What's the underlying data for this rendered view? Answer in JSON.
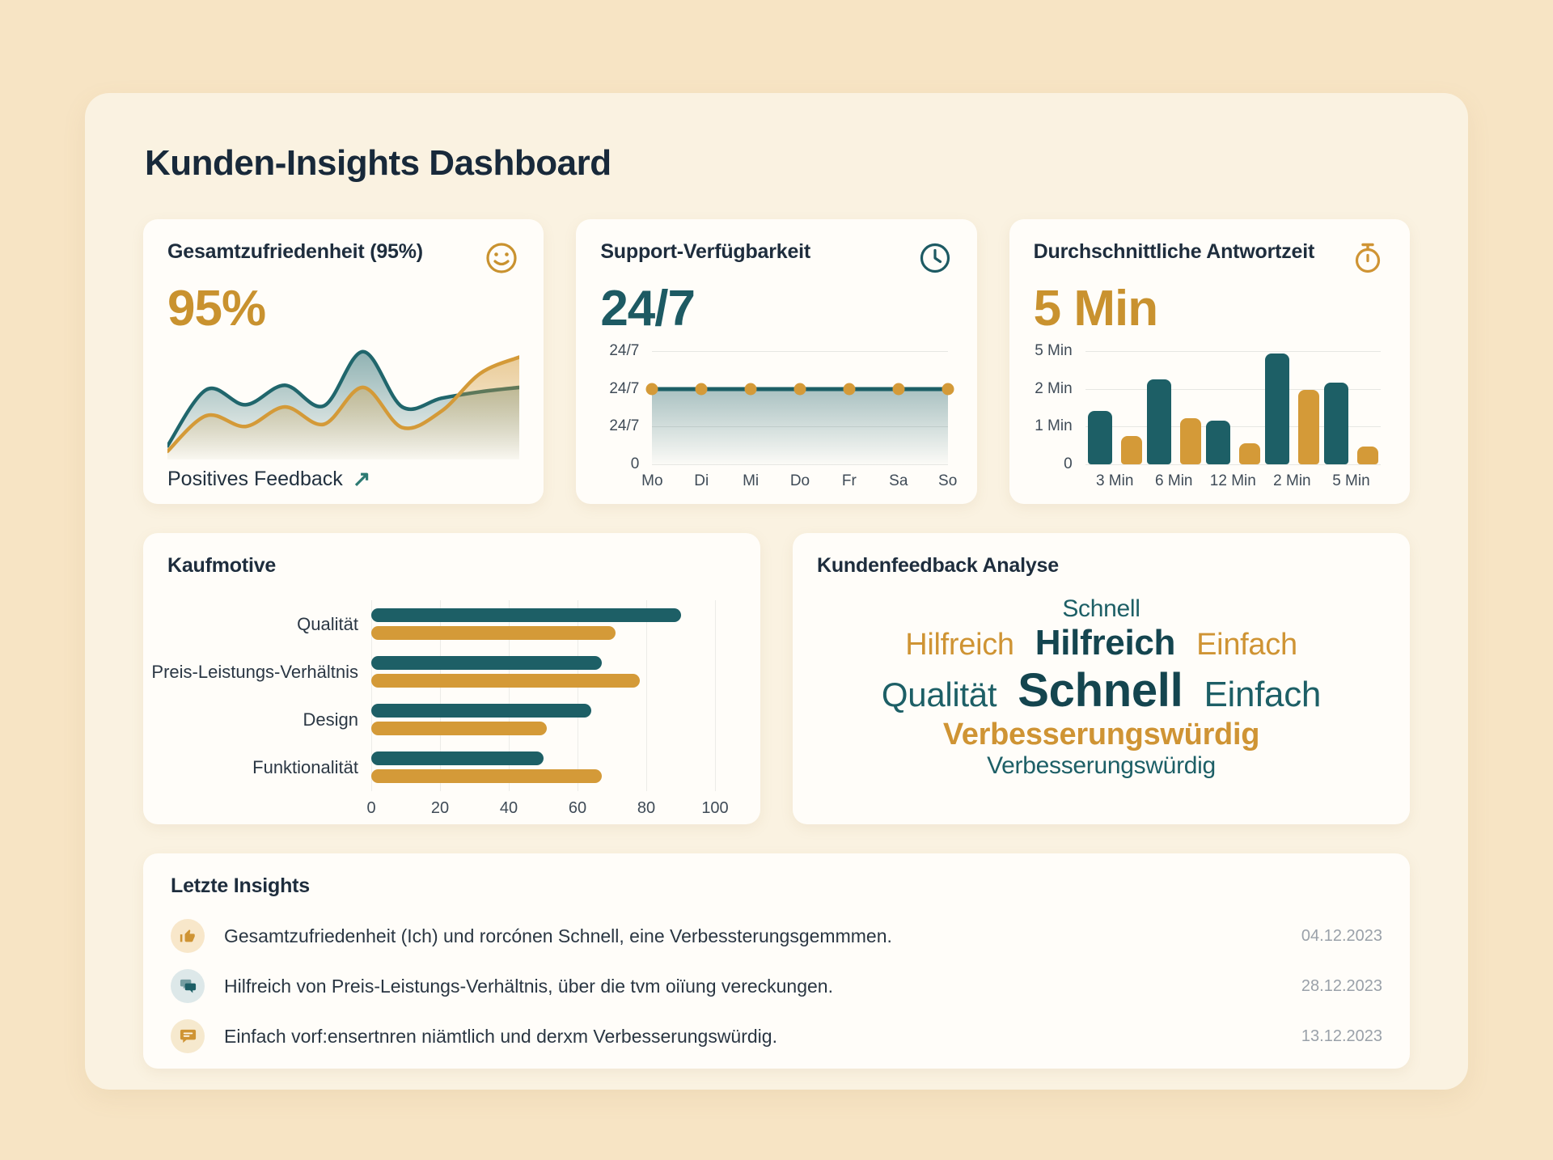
{
  "page": {
    "title": "Kunden-Insights Dashboard"
  },
  "colors": {
    "teal": "#1d5f66",
    "teal_dark": "#14454f",
    "gold": "#cf9434",
    "navy": "#1c2b3a",
    "gold_value": "#c9922f",
    "teal_value": "#1d5a63"
  },
  "cards": {
    "satisfaction": {
      "title": "Gesamtzufriedenheit (95%)",
      "icon": "smiley-icon",
      "value": "95%",
      "footer_label": "Positives Feedback",
      "footer_arrow": "↗"
    },
    "support": {
      "title": "Support-Verfügbarkeit",
      "icon": "clock-icon",
      "value": "24/7"
    },
    "response": {
      "title": "Durchschnittliche Antwortzeit",
      "icon": "stopwatch-icon",
      "value": "5 Min"
    },
    "motives": {
      "title": "Kaufmotive"
    },
    "feedback": {
      "title": "Kundenfeedback Analyse",
      "word_lines": [
        [
          {
            "text": "Schnell",
            "color": "teal",
            "size": 30,
            "weight": 500
          }
        ],
        [
          {
            "text": "Hilfreich",
            "color": "gold",
            "size": 38,
            "weight": 500
          },
          {
            "text": "Hilfreich",
            "color": "teal_dark",
            "size": 44,
            "weight": 600
          },
          {
            "text": "Einfach",
            "color": "gold",
            "size": 38,
            "weight": 500
          }
        ],
        [
          {
            "text": "Qualität",
            "color": "teal",
            "size": 42,
            "weight": 500
          },
          {
            "text": "Schnell",
            "color": "teal_dark",
            "size": 58,
            "weight": 700
          },
          {
            "text": "Einfach",
            "color": "teal",
            "size": 44,
            "weight": 500
          }
        ],
        [
          {
            "text": "Verbesserungswürdig",
            "color": "gold",
            "size": 38,
            "weight": 600
          }
        ],
        [
          {
            "text": "Verbesserungswürdig",
            "color": "teal",
            "size": 30,
            "weight": 500
          }
        ]
      ]
    },
    "insights": {
      "title": "Letzte Insights",
      "items": [
        {
          "icon": "thumbs-up-icon",
          "text": "Gesamtzufriedenheit (Ich) und rorcónen Schnell, eine Verbessterungsgemmmen.",
          "date": "04.12.2023"
        },
        {
          "icon": "chat-icon",
          "text": "Hilfreich von Preis-Leistungs-Verhältnis, über die tvm oiïung vereckungen.",
          "date": "28.12.2023"
        },
        {
          "icon": "speech-icon",
          "text": "Einfach vorf:ensertnren niämtlich und derxm Verbesserungswürdig.",
          "date": "13.12.2023"
        }
      ]
    }
  },
  "chart_data": [
    {
      "id": "satisfaction_trend",
      "type": "area",
      "title": "Gesamtzufriedenheit Trend",
      "x": [
        0,
        1,
        2,
        3,
        4,
        5,
        6,
        7,
        8,
        9
      ],
      "series": [
        {
          "name": "zufriedenheit-teal",
          "color": "#20666c",
          "values": [
            8,
            60,
            46,
            64,
            45,
            95,
            44,
            52,
            58,
            62
          ]
        },
        {
          "name": "zufriedenheit-gold",
          "color": "#d49a38",
          "values": [
            3,
            36,
            26,
            44,
            28,
            62,
            25,
            40,
            75,
            90
          ]
        }
      ],
      "axes_hidden": true,
      "grid": false,
      "legend": false
    },
    {
      "id": "support_availability",
      "type": "line",
      "categories": [
        "Mo",
        "Di",
        "Mi",
        "Do",
        "Fr",
        "Sa",
        "So"
      ],
      "values": [
        "24/7",
        "24/7",
        "24/7",
        "24/7",
        "24/7",
        "24/7",
        "24/7"
      ],
      "y_ticks_top_down": [
        "24/7",
        "24/7",
        "24/7",
        "0"
      ],
      "line_gridline_index": 1,
      "line_color": "#1d5f66",
      "dot_color": "#d49a38",
      "grid": true,
      "legend": false
    },
    {
      "id": "response_time",
      "type": "bar",
      "categories": [
        "3 Min",
        "6 Min",
        "12 Min",
        "2 Min",
        "5 Min"
      ],
      "y_ticks_top_down": [
        "5 Min",
        "2 Min",
        "1 Min",
        "0"
      ],
      "ylim": [
        0,
        100
      ],
      "series": [
        {
          "name": "antwortzeit-teal",
          "color": "#1d5f66",
          "values": [
            47,
            75,
            39,
            98,
            72
          ]
        },
        {
          "name": "antwortzeit-gold",
          "color": "#d49a38",
          "values": [
            25,
            41,
            19,
            66,
            16
          ]
        }
      ],
      "grid": true,
      "legend": false
    },
    {
      "id": "kaufmotive",
      "type": "bar",
      "orientation": "horizontal",
      "categories": [
        "Qualität",
        "Preis-Leistungs-Verhältnis",
        "Design",
        "Funktionalität"
      ],
      "x_ticks": [
        0,
        20,
        40,
        60,
        80,
        100
      ],
      "xlim": [
        0,
        100
      ],
      "series": [
        {
          "name": "kaufmotive-teal",
          "color": "#1d5f66",
          "values": [
            90,
            67,
            64,
            50
          ]
        },
        {
          "name": "kaufmotive-gold",
          "color": "#d49a38",
          "values": [
            71,
            78,
            51,
            67
          ]
        }
      ],
      "grid": true,
      "legend": false
    }
  ]
}
